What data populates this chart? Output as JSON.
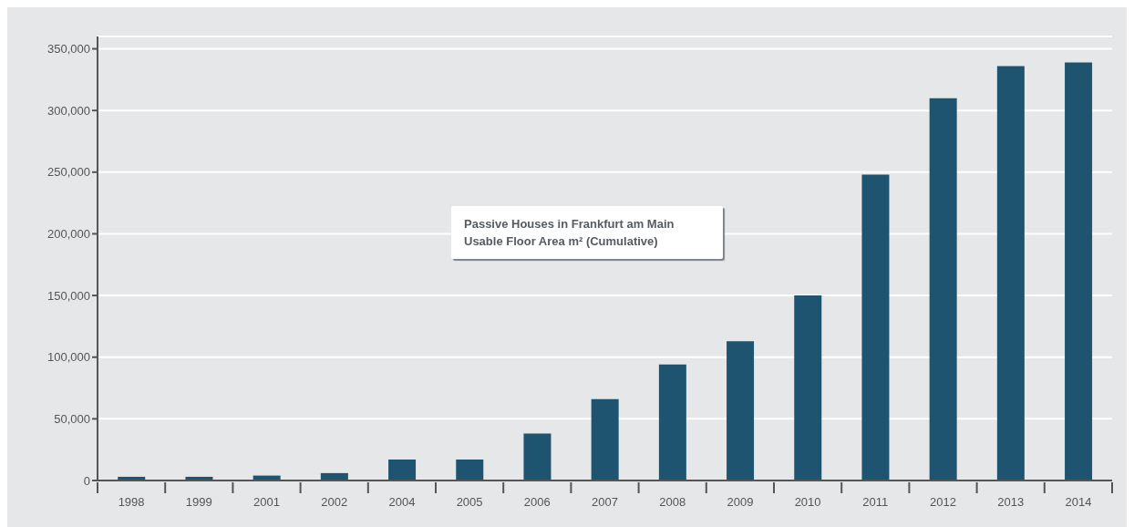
{
  "chart_data": {
    "type": "bar",
    "title": "Passive Houses in Frankfurt am Main",
    "subtitle": "Usable Floor Area m² (Cumulative)",
    "categories": [
      "1998",
      "1999",
      "2001",
      "2002",
      "2004",
      "2005",
      "2006",
      "2007",
      "2008",
      "2009",
      "2010",
      "2011",
      "2012",
      "2013",
      "2014"
    ],
    "values": [
      3000,
      3000,
      4000,
      6000,
      17000,
      17000,
      38000,
      66000,
      94000,
      113000,
      150000,
      248000,
      310000,
      336000,
      339000
    ],
    "color": "#1f5470",
    "ylim": [
      0,
      360000
    ],
    "yticks": [
      0,
      {
        "value": 50000,
        "label": "50,000"
      },
      {
        "value": 100000,
        "label": "100,000"
      },
      {
        "value": 150000,
        "label": "150,000"
      },
      {
        "value": 200000,
        "label": "200,000"
      },
      {
        "value": 250000,
        "label": "250,000"
      },
      {
        "value": 300000,
        "label": "300,000"
      },
      {
        "value": 350000,
        "label": "350,000"
      }
    ],
    "grid": "y"
  }
}
